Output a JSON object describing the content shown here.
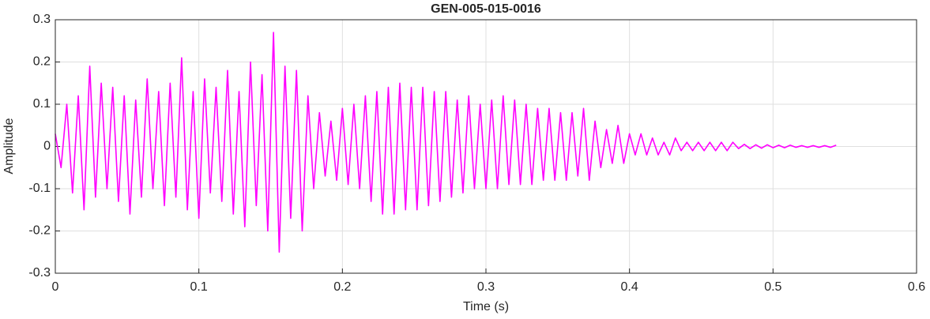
{
  "chart_data": {
    "type": "line",
    "title": "GEN-005-015-0016",
    "xlabel": "Time (s)",
    "ylabel": "Amplitude",
    "color": "#ff00ff",
    "grid": true,
    "xlim": [
      0,
      0.6
    ],
    "xticks": [
      0,
      0.1,
      0.2,
      0.3,
      0.4,
      0.5,
      0.6
    ],
    "ylim": [
      -0.3,
      0.3
    ],
    "yticks": [
      -0.3,
      -0.2,
      -0.1,
      0,
      0.1,
      0.2,
      0.3
    ],
    "x": [
      0,
      0.004,
      0.008,
      0.012,
      0.016,
      0.02,
      0.024,
      0.028,
      0.032,
      0.036,
      0.04,
      0.044,
      0.048,
      0.052,
      0.056,
      0.06,
      0.064,
      0.068,
      0.072,
      0.076,
      0.08,
      0.084,
      0.088,
      0.092,
      0.096,
      0.1,
      0.104,
      0.108,
      0.112,
      0.116,
      0.12,
      0.124,
      0.128,
      0.132,
      0.136,
      0.14,
      0.144,
      0.148,
      0.152,
      0.156,
      0.16,
      0.164,
      0.168,
      0.172,
      0.176,
      0.18,
      0.184,
      0.188,
      0.192,
      0.196,
      0.2,
      0.204,
      0.208,
      0.212,
      0.216,
      0.22,
      0.224,
      0.228,
      0.232,
      0.236,
      0.24,
      0.244,
      0.248,
      0.252,
      0.256,
      0.26,
      0.264,
      0.268,
      0.272,
      0.276,
      0.28,
      0.284,
      0.288,
      0.292,
      0.296,
      0.3,
      0.304,
      0.308,
      0.312,
      0.316,
      0.32,
      0.324,
      0.328,
      0.332,
      0.336,
      0.34,
      0.344,
      0.348,
      0.352,
      0.356,
      0.36,
      0.364,
      0.368,
      0.372,
      0.376,
      0.38,
      0.384,
      0.388,
      0.392,
      0.396,
      0.4,
      0.404,
      0.408,
      0.412,
      0.416,
      0.42,
      0.424,
      0.428,
      0.432,
      0.436,
      0.44,
      0.444,
      0.448,
      0.452,
      0.456,
      0.46,
      0.464,
      0.468,
      0.472,
      0.476,
      0.48,
      0.484,
      0.488,
      0.492,
      0.496,
      0.5,
      0.504,
      0.508,
      0.512,
      0.516,
      0.52,
      0.524,
      0.528,
      0.532,
      0.536,
      0.54,
      0.544
    ],
    "values": [
      0.03,
      -0.05,
      0.1,
      -0.11,
      0.12,
      -0.15,
      0.19,
      -0.12,
      0.15,
      -0.1,
      0.14,
      -0.13,
      0.12,
      -0.16,
      0.11,
      -0.12,
      0.16,
      -0.1,
      0.13,
      -0.14,
      0.15,
      -0.12,
      0.21,
      -0.15,
      0.13,
      -0.17,
      0.16,
      -0.11,
      0.14,
      -0.13,
      0.18,
      -0.16,
      0.13,
      -0.19,
      0.2,
      -0.14,
      0.17,
      -0.2,
      0.27,
      -0.25,
      0.19,
      -0.17,
      0.18,
      -0.2,
      0.12,
      -0.1,
      0.08,
      -0.07,
      0.06,
      -0.08,
      0.09,
      -0.09,
      0.1,
      -0.1,
      0.12,
      -0.13,
      0.13,
      -0.16,
      0.14,
      -0.16,
      0.15,
      -0.15,
      0.14,
      -0.15,
      0.14,
      -0.14,
      0.13,
      -0.13,
      0.13,
      -0.12,
      0.11,
      -0.11,
      0.12,
      -0.1,
      0.1,
      -0.1,
      0.11,
      -0.1,
      0.12,
      -0.09,
      0.11,
      -0.09,
      0.1,
      -0.09,
      0.09,
      -0.08,
      0.09,
      -0.08,
      0.08,
      -0.08,
      0.08,
      -0.07,
      0.09,
      -0.08,
      0.06,
      -0.05,
      0.04,
      -0.04,
      0.05,
      -0.04,
      0.03,
      -0.02,
      0.03,
      -0.02,
      0.02,
      -0.02,
      0.01,
      -0.02,
      0.02,
      -0.01,
      0.01,
      -0.01,
      0.01,
      -0.01,
      0.01,
      -0.01,
      0.01,
      -0.01,
      0.01,
      -0.005,
      0.005,
      -0.005,
      0.004,
      -0.004,
      0.004,
      -0.003,
      0.003,
      -0.003,
      0.003,
      -0.002,
      0.002,
      -0.002,
      0.002,
      -0.002,
      0.002,
      -0.002,
      0.003
    ]
  }
}
